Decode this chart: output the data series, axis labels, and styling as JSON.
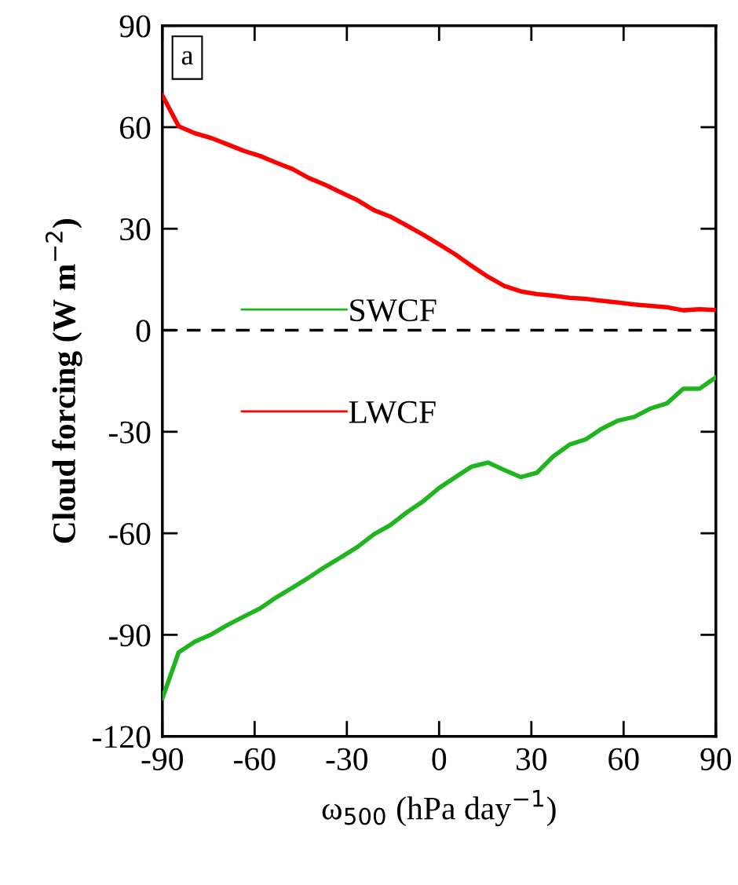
{
  "chart_data": {
    "type": "line",
    "xlabel": "ω$_{500}$ (hPa day$^{−1}$)",
    "ylabel": "Cloud forcing (W m$^{−2}$)",
    "x": [
      -90,
      -84.7,
      -79.4,
      -74.1,
      -68.8,
      -63.5,
      -58.2,
      -52.9,
      -47.6,
      -42.4,
      -37.1,
      -31.8,
      -26.5,
      -21.2,
      -15.9,
      -10.6,
      -5.3,
      0,
      5.3,
      10.6,
      15.9,
      21.2,
      26.5,
      31.8,
      37.1,
      42.4,
      47.6,
      52.9,
      58.2,
      63.5,
      68.8,
      74.1,
      79.4,
      84.7,
      90
    ],
    "series": [
      {
        "name": "SWCF",
        "color": "#1fb51f",
        "values": [
          -108.8,
          -95.2,
          -92.0,
          -89.9,
          -87.1,
          -84.6,
          -82.2,
          -78.9,
          -76.0,
          -73.1,
          -69.9,
          -67.0,
          -64.0,
          -60.3,
          -57.6,
          -53.9,
          -50.6,
          -46.6,
          -43.4,
          -40.3,
          -39.1,
          -41.3,
          -43.4,
          -42.1,
          -37.3,
          -33.8,
          -32.3,
          -29.1,
          -26.7,
          -25.6,
          -23.1,
          -21.6,
          -17.3,
          -17.3,
          -13.9
        ]
      },
      {
        "name": "LWCF",
        "color": "#ff0000",
        "values": [
          69.4,
          60.3,
          58.2,
          56.8,
          54.9,
          53.0,
          51.5,
          49.5,
          47.6,
          45.0,
          43.0,
          40.7,
          38.4,
          35.5,
          33.6,
          31.0,
          28.3,
          25.4,
          22.4,
          19.0,
          15.8,
          13.1,
          11.5,
          10.7,
          10.2,
          9.6,
          9.3,
          8.7,
          8.2,
          7.6,
          7.2,
          6.8,
          5.9,
          6.2,
          6.0
        ]
      }
    ],
    "xlim": [
      -90,
      90
    ],
    "xticks": [
      -90,
      -60,
      -30,
      0,
      30,
      60,
      90
    ],
    "ylim": [
      -120,
      90
    ],
    "yticks": [
      -120,
      -90,
      -60,
      -30,
      0,
      30,
      60,
      90
    ],
    "ref_lines": [
      {
        "axis": "y",
        "value": 0,
        "color": "#000000",
        "line_style": "dashed"
      }
    ],
    "annotations": [
      "a"
    ],
    "legend": "left",
    "grid": false,
    "marker": "none",
    "line_style": "solid"
  }
}
